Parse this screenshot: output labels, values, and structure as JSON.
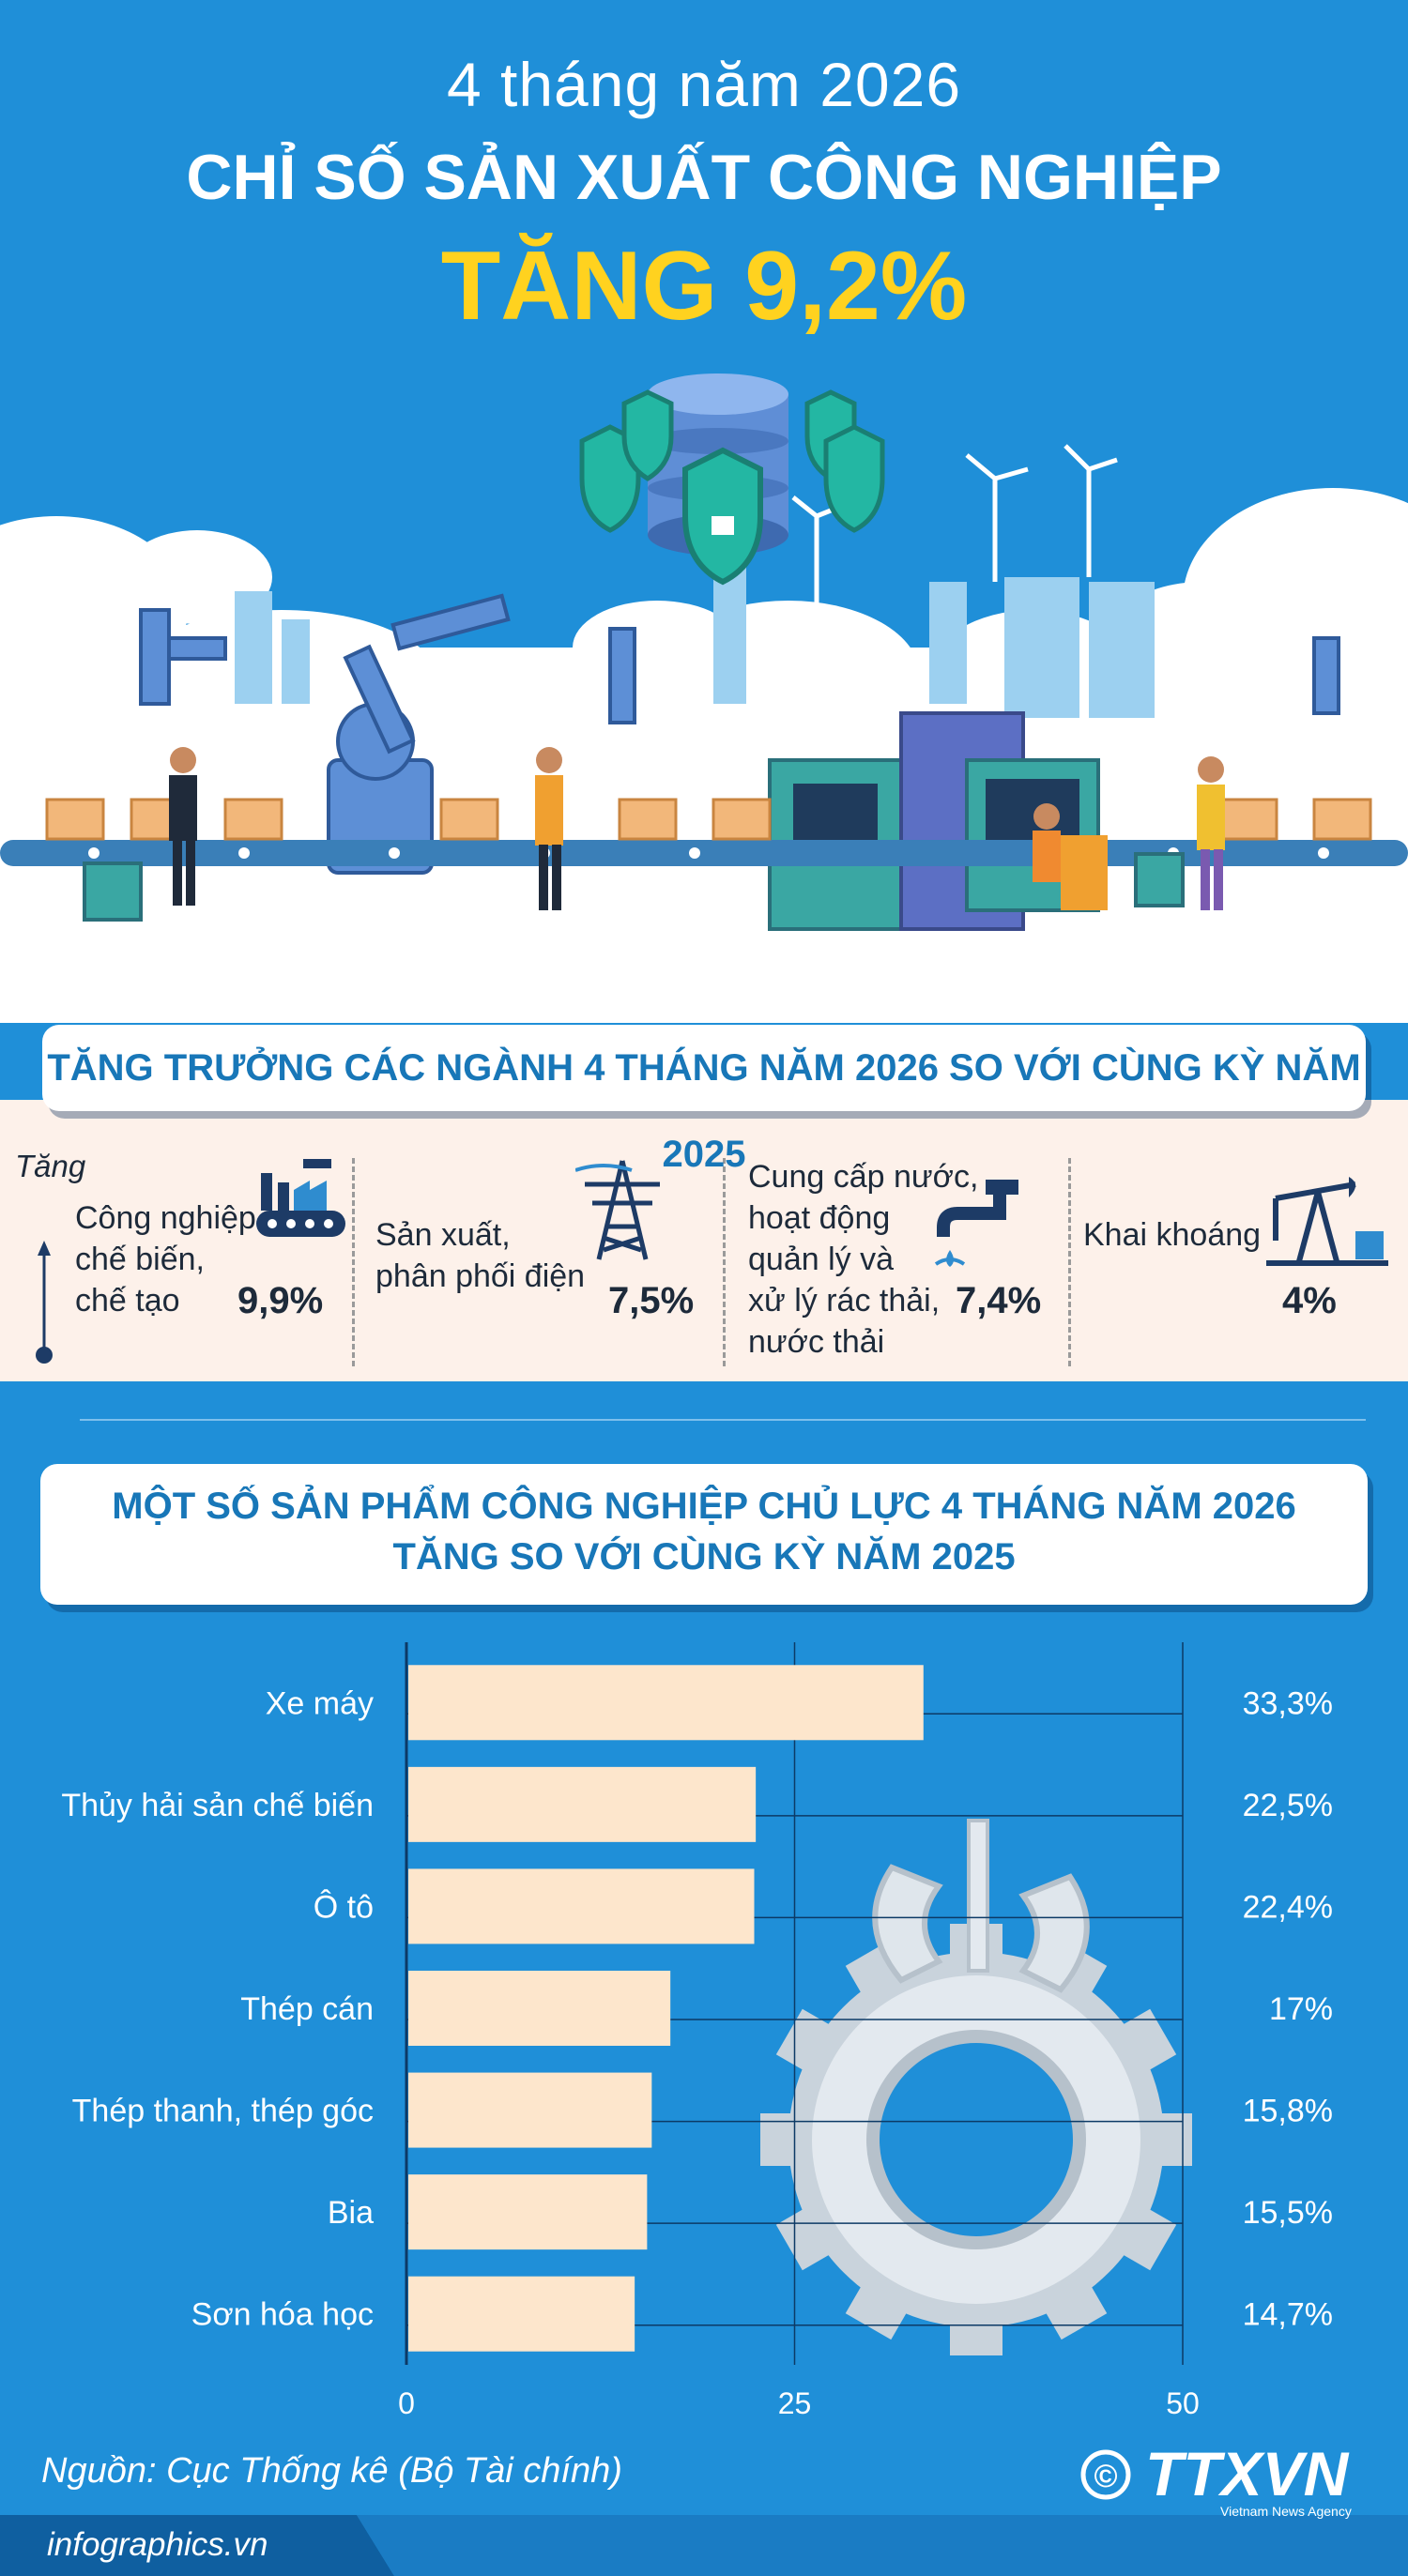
{
  "header": {
    "subtitle": "4 tháng năm 2026",
    "title": "CHỈ SỐ SẢN XUẤT CÔNG NGHIỆP",
    "highlight": "TĂNG 9,2%"
  },
  "sector_section": {
    "title": "TĂNG TRƯỞNG CÁC NGÀNH 4 THÁNG NĂM 2026 SO VỚI CÙNG KỲ NĂM 2025",
    "axis_label": "Tăng",
    "sectors": [
      {
        "lines": [
          "Công nghiệp",
          "chế biến,",
          "chế tạo"
        ],
        "value": "9,9%",
        "icon": "factory-icon"
      },
      {
        "lines": [
          "Sản xuất,",
          "phân phối điện"
        ],
        "value": "7,5%",
        "icon": "power-tower-icon"
      },
      {
        "lines": [
          "Cung cấp nước,",
          "hoạt động",
          "quản lý và",
          "xử lý rác thải,",
          "nước thải"
        ],
        "value": "7,4%",
        "icon": "water-tap-icon"
      },
      {
        "lines": [
          "Khai khoáng"
        ],
        "value": "4%",
        "icon": "oil-pump-icon"
      }
    ]
  },
  "products_section": {
    "title_lines": [
      "MỘT SỐ SẢN PHẨM CÔNG NGHIỆP CHỦ LỰC 4 THÁNG NĂM 2026",
      "TĂNG SO VỚI CÙNG KỲ NĂM 2025"
    ]
  },
  "chart_data": {
    "type": "bar",
    "orientation": "horizontal",
    "categories": [
      "Xe máy",
      "Thủy hải sản chế biến",
      "Ô tô",
      "Thép cán",
      "Thép thanh, thép góc",
      "Bia",
      "Sơn hóa học"
    ],
    "values": [
      33.3,
      22.5,
      22.4,
      17,
      15.8,
      15.5,
      14.7
    ],
    "value_labels": [
      "33,3%",
      "22,5%",
      "22,4%",
      "17%",
      "15,8%",
      "15,5%",
      "14,7%"
    ],
    "x_ticks": [
      0,
      25,
      50
    ],
    "xlim": [
      0,
      50
    ],
    "bar_color": "#fde6cc",
    "grid": true
  },
  "footer": {
    "source": "Nguồn: Cục Thống kê (Bộ Tài chính)",
    "website": "infographics.vn",
    "logo_text": "TTXVN",
    "logo_subtext": "Vietnam News Agency",
    "copyright_symbol": "©"
  },
  "colors": {
    "background": "#1f8fd8",
    "highlight": "#ffd21f",
    "banner_text": "#1877b8",
    "panel": "#fdf1ea"
  }
}
